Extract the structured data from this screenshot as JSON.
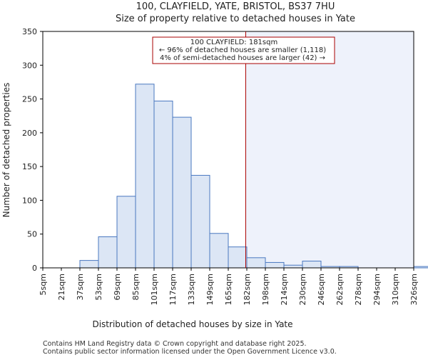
{
  "chart_data": {
    "type": "bar",
    "title": "100, CLAYFIELD, YATE, BRISTOL, BS37 7HU",
    "subtitle": "Size of property relative to detached houses in Yate",
    "xlabel": "Distribution of detached houses by size in Yate",
    "ylabel": "Number of detached properties",
    "ylim": [
      0,
      350
    ],
    "yticks": [
      0,
      50,
      100,
      150,
      200,
      250,
      300,
      350
    ],
    "bin_edges": [
      5,
      21,
      37,
      53,
      69,
      85,
      101,
      117,
      133,
      149,
      165,
      182,
      198,
      214,
      230,
      246,
      262,
      278,
      294,
      310,
      326
    ],
    "categories": [
      "5sqm",
      "21sqm",
      "37sqm",
      "53sqm",
      "69sqm",
      "85sqm",
      "101sqm",
      "117sqm",
      "133sqm",
      "149sqm",
      "165sqm",
      "182sqm",
      "198sqm",
      "214sqm",
      "230sqm",
      "246sqm",
      "262sqm",
      "278sqm",
      "294sqm",
      "310sqm",
      "326sqm"
    ],
    "values": [
      0,
      0,
      11,
      46,
      106,
      272,
      247,
      223,
      137,
      51,
      31,
      15,
      8,
      4,
      10,
      2,
      2,
      0,
      0,
      0,
      2
    ],
    "marker_value": 181,
    "annotation": {
      "line1": "100 CLAYFIELD: 181sqm",
      "line2": "← 96% of detached houses are smaller (1,118)",
      "line3": "4% of semi-detached houses are larger (42) →"
    },
    "colors": {
      "bar_fill": "#dce6f5",
      "bar_stroke": "#4a78c0",
      "marker": "#aa0000",
      "shade": "#eef2fb"
    }
  },
  "footer": {
    "line1": "Contains HM Land Registry data © Crown copyright and database right 2025.",
    "line2": "Contains public sector information licensed under the Open Government Licence v3.0."
  }
}
